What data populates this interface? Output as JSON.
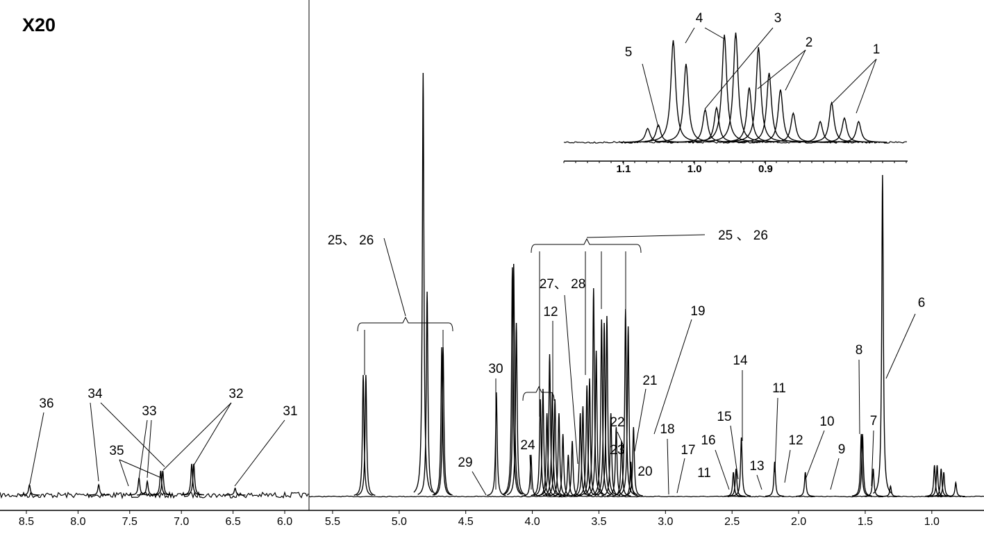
{
  "chart_data": [
    {
      "type": "nmr",
      "title": "X20",
      "x": [
        8.47,
        7.8,
        7.41,
        7.33,
        7.2,
        7.18,
        6.9,
        6.88,
        6.48
      ],
      "values": [
        15,
        15,
        25,
        20,
        35,
        35,
        45,
        45,
        10
      ],
      "color": "#000000",
      "xlim": [
        8.755,
        5.765
      ],
      "xticks": [
        8.5,
        {
          "value": 8,
          "label": "8.0"
        },
        7.5,
        {
          "value": 7,
          "label": "7.0"
        },
        6.5,
        {
          "value": 6,
          "label": "6.0"
        }
      ],
      "annotations": [
        "36",
        "34",
        "33",
        "35",
        "32",
        "31"
      ]
    },
    {
      "type": "nmr",
      "x": [
        5.27,
        5.25,
        4.82,
        4.79,
        4.68,
        4.67,
        4.27,
        4.15,
        4.14,
        4.12,
        4.01,
        3.94,
        3.92,
        3.89,
        3.87,
        3.85,
        3.83,
        3.8,
        3.77,
        3.73,
        3.7,
        3.64,
        3.62,
        3.59,
        3.57,
        3.54,
        3.52,
        3.48,
        3.46,
        3.44,
        3.41,
        3.37,
        3.33,
        3.3,
        3.28,
        3.26,
        3.24,
        2.49,
        2.47,
        2.43,
        2.18,
        1.95,
        1.53,
        1.52,
        1.44,
        1.37,
        1.31,
        0.98,
        0.96,
        0.93,
        0.91,
        0.82
      ],
      "values": [
        175,
        175,
        610,
        295,
        215,
        215,
        150,
        330,
        335,
        250,
        60,
        140,
        155,
        120,
        205,
        150,
        140,
        120,
        90,
        60,
        80,
        120,
        130,
        160,
        170,
        300,
        210,
        255,
        250,
        260,
        120,
        100,
        80,
        270,
        245,
        50,
        100,
        35,
        40,
        85,
        50,
        35,
        90,
        90,
        40,
        463,
        15,
        45,
        45,
        40,
        35,
        20
      ],
      "color": "#000000",
      "xlim": [
        5.677,
        0.608
      ],
      "xticks": [
        5.5,
        {
          "value": 5,
          "label": "5.0"
        },
        4.5,
        {
          "value": 4,
          "label": "4.0"
        },
        3.5,
        {
          "value": 3,
          "label": "3.0"
        },
        2.5,
        {
          "value": 2,
          "label": "2.0"
        },
        1.5,
        {
          "value": 1,
          "label": "1.0"
        }
      ],
      "annotations": [
        "25、 26",
        "29",
        "30",
        "24",
        "27、 28",
        "12",
        "22",
        "23",
        "21",
        "20",
        "19",
        "18",
        "17",
        "16",
        "11",
        "15",
        "14",
        "13",
        "11",
        "12",
        "10",
        "9",
        "8",
        "7",
        "6",
        "25 、 26"
      ]
    },
    {
      "type": "nmr",
      "x": [
        1.066,
        1.051,
        1.03,
        1.012,
        0.985,
        0.969,
        0.958,
        0.942,
        0.923,
        0.91,
        0.895,
        0.879,
        0.861,
        0.823,
        0.807,
        0.789,
        0.769
      ],
      "values": [
        20,
        25,
        147,
        113,
        47,
        50,
        155,
        158,
        79,
        137,
        100,
        76,
        42,
        30,
        57,
        35,
        30
      ],
      "color": "#000000",
      "xlim": [
        1.184,
        0.7
      ],
      "xticks": [
        {
          "value": 1.1,
          "label": "1.1"
        },
        {
          "value": 1,
          "label": "1.0"
        },
        {
          "value": 0.9,
          "label": "0.9"
        }
      ],
      "annotations": [
        "5",
        "4",
        "3",
        "2",
        "1"
      ]
    }
  ]
}
